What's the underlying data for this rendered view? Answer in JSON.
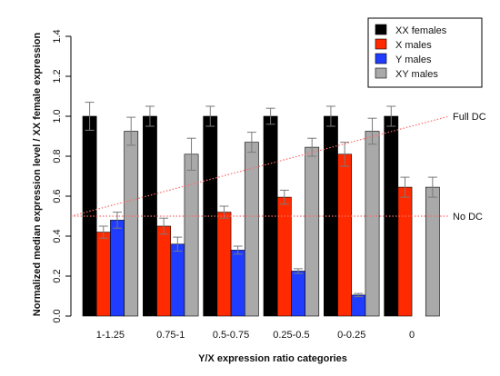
{
  "chart_data": {
    "type": "bar",
    "title": "",
    "xlabel": "Y/X expression ratio categories",
    "ylabel": "Normalized median expression level / XX female expression",
    "ylim": [
      0,
      1.4
    ],
    "yticks": [
      "0.0",
      "0.2",
      "0.4",
      "0.6",
      "0.8",
      "1.0",
      "1.2",
      "1.4"
    ],
    "categories": [
      "1-1.25",
      "0.75-1",
      "0.5-0.75",
      "0.25-0.5",
      "0-0.25",
      "0"
    ],
    "series": [
      {
        "name": "XX females",
        "color": "#000000",
        "values": [
          1.0,
          1.0,
          1.0,
          1.0,
          1.0,
          1.0
        ],
        "err": [
          0.07,
          0.05,
          0.05,
          0.04,
          0.05,
          0.05
        ]
      },
      {
        "name": "X males",
        "color": "#ff2a00",
        "values": [
          0.42,
          0.45,
          0.52,
          0.595,
          0.81,
          0.645
        ],
        "err": [
          0.03,
          0.04,
          0.03,
          0.035,
          0.06,
          0.05
        ]
      },
      {
        "name": "Y males",
        "color": "#1f3cff",
        "values": [
          0.48,
          0.36,
          0.33,
          0.225,
          0.105,
          null
        ],
        "err": [
          0.04,
          0.035,
          0.02,
          0.012,
          0.008,
          null
        ]
      },
      {
        "name": "XY males",
        "color": "#a9a9a9",
        "values": [
          0.925,
          0.81,
          0.87,
          0.845,
          0.925,
          0.645
        ],
        "err": [
          0.07,
          0.08,
          0.05,
          0.045,
          0.065,
          0.05
        ]
      }
    ],
    "reference_lines": [
      {
        "label": "Full DC",
        "from": 0.5,
        "to": 1.0,
        "style": "dotted",
        "color": "#ff6a6a"
      },
      {
        "label": "No DC",
        "from": 0.5,
        "to": 0.5,
        "style": "dotted",
        "color": "#ff6a6a"
      }
    ],
    "legend_position": "top-right",
    "grid": false
  }
}
